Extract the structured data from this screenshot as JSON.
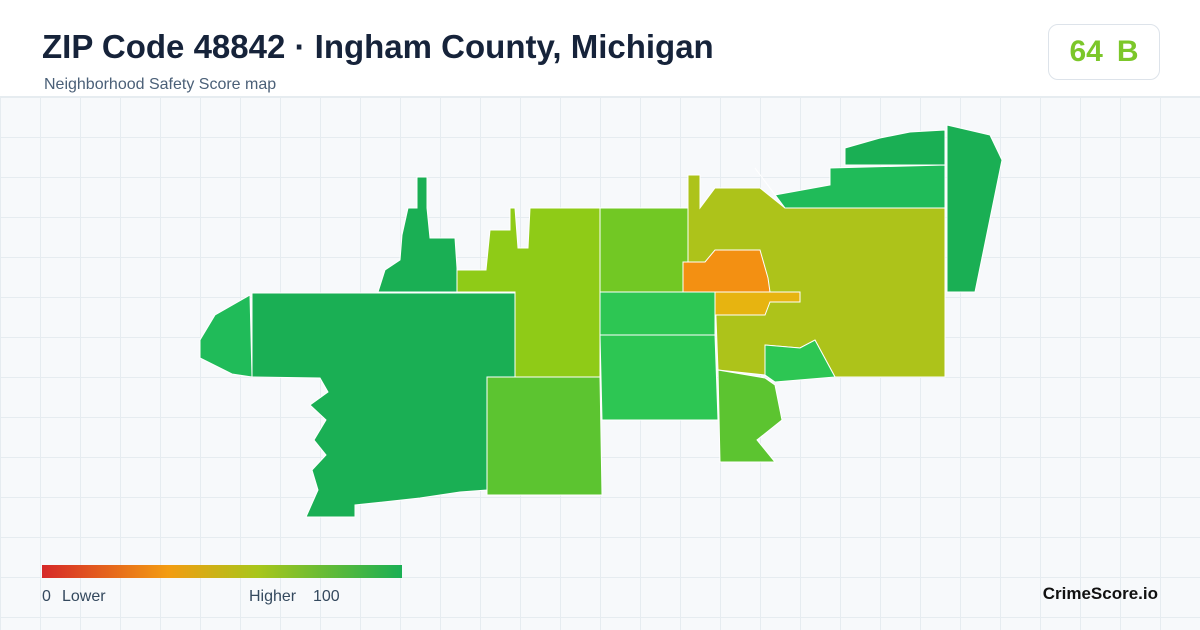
{
  "header": {
    "title": "ZIP Code 48842 · Ingham County, Michigan",
    "subtitle": "Neighborhood Safety Score map"
  },
  "score": {
    "value": 64,
    "grade": "B"
  },
  "legend": {
    "min": 0,
    "min_label": "Lower",
    "max_label": "Higher",
    "max": 100
  },
  "brand": "CrimeScore.io"
}
